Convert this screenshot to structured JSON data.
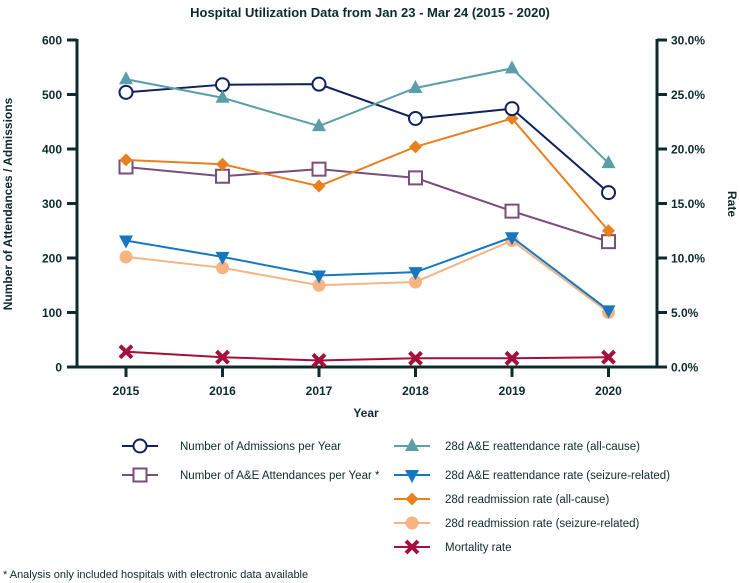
{
  "chart_data": {
    "type": "line",
    "title": "Hospital Utilization Data from Jan 23 - Mar 24 (2015 - 2020)",
    "xlabel": "Year",
    "ylabel": "Number of Attendances / Admissions",
    "y2label": "Rate",
    "categories": [
      "2015",
      "2016",
      "2017",
      "2018",
      "2019",
      "2020"
    ],
    "ylim": [
      0,
      600
    ],
    "y_ticks": [
      "0",
      "100",
      "200",
      "300",
      "400",
      "500",
      "600"
    ],
    "y2lim": [
      0,
      30
    ],
    "y2_ticks": [
      "0.0%",
      "5.0%",
      "10.0%",
      "15.0%",
      "20.0%",
      "25.0%",
      "30.0%"
    ],
    "grid": false,
    "legend_position": "bottom",
    "series": [
      {
        "name": "Number of Admissions per Year",
        "axis": "left",
        "marker": "circle-open",
        "color": "#10205c",
        "values": [
          504,
          518,
          519,
          456,
          474,
          320
        ]
      },
      {
        "name": "Number of A&E Attendances per Year *",
        "axis": "left",
        "marker": "square-open",
        "color": "#7b4d7a",
        "values": [
          367,
          350,
          363,
          347,
          286,
          230
        ]
      },
      {
        "name": "28d A&E reattendance rate (all-cause)",
        "axis": "right",
        "marker": "triangle-up",
        "color": "#5a9fa7",
        "values": [
          26.4,
          24.7,
          22.1,
          25.6,
          27.4,
          18.7
        ]
      },
      {
        "name": "28d A&E reattendance rate (seizure-related)",
        "axis": "right",
        "marker": "triangle-down",
        "color": "#1677c0",
        "values": [
          11.6,
          10.1,
          8.4,
          8.7,
          11.9,
          5.2
        ]
      },
      {
        "name": "28d readmission rate (all-cause)",
        "axis": "right",
        "marker": "diamond",
        "color": "#e8801f",
        "values": [
          19.0,
          18.6,
          16.6,
          20.2,
          22.8,
          12.5
        ]
      },
      {
        "name": "28d readmission rate (seizure-related)",
        "axis": "right",
        "marker": "circle",
        "color": "#f5b482",
        "values": [
          10.1,
          9.1,
          7.5,
          7.8,
          11.6,
          5.0
        ]
      },
      {
        "name": "Mortality rate",
        "axis": "right",
        "marker": "x",
        "color": "#a50f3c",
        "values": [
          1.4,
          0.9,
          0.6,
          0.8,
          0.8,
          0.9
        ]
      }
    ],
    "footnote": "* Analysis only included hospitals with electronic data available"
  }
}
